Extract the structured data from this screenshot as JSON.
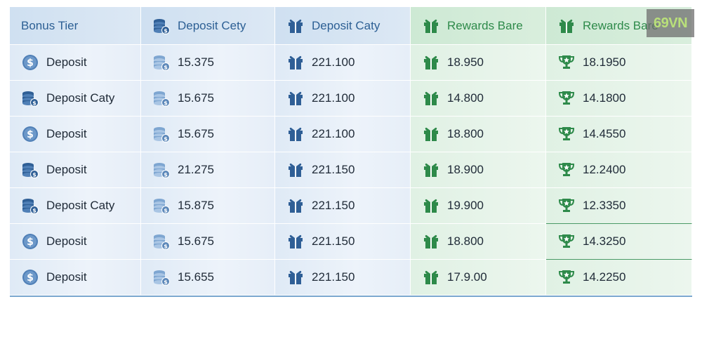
{
  "headers": [
    "Bonus Tier",
    "Deposit Cety",
    "Deposit Caty",
    "Rewards Bare",
    "Rewards Bare"
  ],
  "rows": [
    {
      "tier": "Deposit",
      "tier_icon": "dollar-coin-icon",
      "c1": "15.375",
      "c2": "221.100",
      "c3": "18.950",
      "c4": "18.1950"
    },
    {
      "tier": "Deposit Caty",
      "tier_icon": "coin-stack-icon",
      "c1": "15.675",
      "c2": "221.100",
      "c3": "14.800",
      "c4": "14.1800"
    },
    {
      "tier": "Deposit",
      "tier_icon": "dollar-coin-icon",
      "c1": "15.675",
      "c2": "221.100",
      "c3": "18.800",
      "c4": "14.4550"
    },
    {
      "tier": "Deposit",
      "tier_icon": "coin-stack-icon",
      "c1": "21.275",
      "c2": "221.150",
      "c3": "18.900",
      "c4": "12.2400"
    },
    {
      "tier": "Deposit Caty",
      "tier_icon": "coin-stack-icon",
      "c1": "15.875",
      "c2": "221.150",
      "c3": "19.900",
      "c4": "12.3350"
    },
    {
      "tier": "Deposit",
      "tier_icon": "dollar-coin-icon",
      "c1": "15.675",
      "c2": "221.150",
      "c3": "18.800",
      "c4": "14.3250"
    },
    {
      "tier": "Deposit",
      "tier_icon": "dollar-coin-icon",
      "c1": "15.655",
      "c2": "221.150",
      "c3": "17.9.00",
      "c4": "14.2250"
    }
  ],
  "watermark": "69VN",
  "colors": {
    "blue_text": "#2c5f94",
    "green_text": "#2e8a4a",
    "icon_blue": "#2f5f96",
    "icon_green": "#2e8a4a"
  }
}
